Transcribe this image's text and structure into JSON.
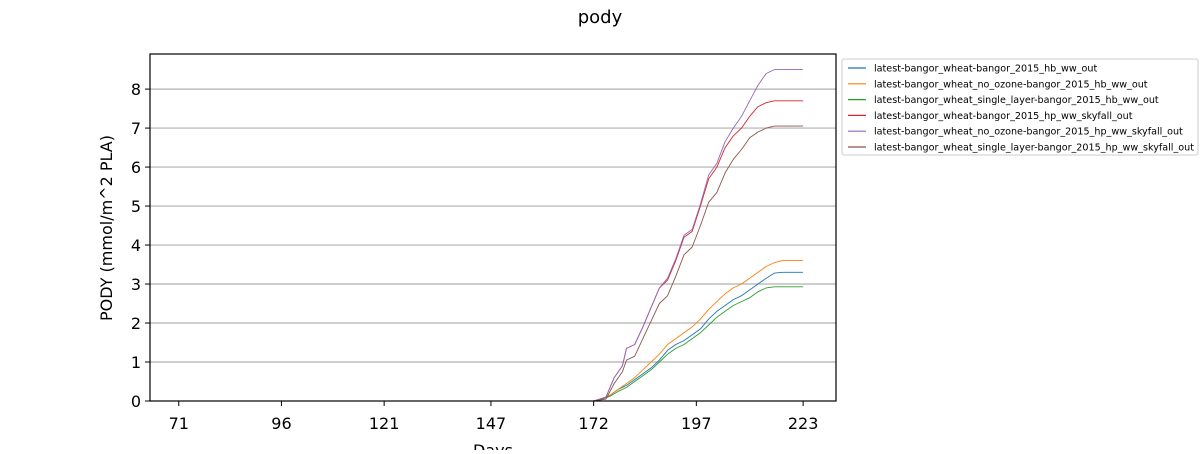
{
  "chart_data": {
    "type": "line",
    "title": "pody",
    "xlabel": "Days",
    "ylabel": "PODY (mmol/m^2 PLA)",
    "xlim": [
      64,
      231
    ],
    "ylim": [
      0,
      8.9
    ],
    "xticks": [
      71,
      96,
      121,
      147,
      172,
      197,
      223
    ],
    "xtick_labels": [
      "71",
      "96",
      "121",
      "147",
      "172",
      "197",
      "223"
    ],
    "yticks": [
      0,
      1,
      2,
      3,
      4,
      5,
      6,
      7,
      8
    ],
    "ytick_labels": [
      "0",
      "1",
      "2",
      "3",
      "4",
      "5",
      "6",
      "7",
      "8"
    ],
    "grid": "horizontal",
    "legend_position": "outside-upper-right",
    "series": [
      {
        "name": "latest-bangor_wheat-bangor_2015_hb_ww_out",
        "color": "#1f77b4",
        "points": [
          [
            71,
            0
          ],
          [
            172,
            0
          ],
          [
            174,
            0.05
          ],
          [
            176,
            0.15
          ],
          [
            178,
            0.3
          ],
          [
            180,
            0.4
          ],
          [
            182,
            0.55
          ],
          [
            184,
            0.7
          ],
          [
            186,
            0.85
          ],
          [
            188,
            1.05
          ],
          [
            190,
            1.3
          ],
          [
            192,
            1.45
          ],
          [
            194,
            1.55
          ],
          [
            196,
            1.7
          ],
          [
            198,
            1.85
          ],
          [
            200,
            2.1
          ],
          [
            202,
            2.3
          ],
          [
            204,
            2.45
          ],
          [
            206,
            2.6
          ],
          [
            208,
            2.7
          ],
          [
            210,
            2.85
          ],
          [
            212,
            3.0
          ],
          [
            214,
            3.15
          ],
          [
            216,
            3.28
          ],
          [
            218,
            3.3
          ],
          [
            223,
            3.3
          ]
        ]
      },
      {
        "name": "latest-bangor_wheat_no_ozone-bangor_2015_hb_ww_out",
        "color": "#ff7f0e",
        "points": [
          [
            71,
            0
          ],
          [
            172,
            0
          ],
          [
            174,
            0.05
          ],
          [
            176,
            0.15
          ],
          [
            178,
            0.3
          ],
          [
            180,
            0.45
          ],
          [
            182,
            0.6
          ],
          [
            184,
            0.8
          ],
          [
            186,
            1.0
          ],
          [
            188,
            1.2
          ],
          [
            190,
            1.45
          ],
          [
            192,
            1.6
          ],
          [
            194,
            1.75
          ],
          [
            196,
            1.9
          ],
          [
            198,
            2.1
          ],
          [
            200,
            2.35
          ],
          [
            202,
            2.55
          ],
          [
            204,
            2.75
          ],
          [
            206,
            2.9
          ],
          [
            208,
            3.0
          ],
          [
            210,
            3.15
          ],
          [
            212,
            3.3
          ],
          [
            214,
            3.45
          ],
          [
            216,
            3.55
          ],
          [
            218,
            3.6
          ],
          [
            223,
            3.6
          ]
        ]
      },
      {
        "name": "latest-bangor_wheat_single_layer-bangor_2015_hb_ww_out",
        "color": "#2ca02c",
        "points": [
          [
            71,
            0
          ],
          [
            172,
            0
          ],
          [
            174,
            0.05
          ],
          [
            176,
            0.12
          ],
          [
            178,
            0.25
          ],
          [
            180,
            0.35
          ],
          [
            182,
            0.5
          ],
          [
            184,
            0.65
          ],
          [
            186,
            0.8
          ],
          [
            188,
            1.0
          ],
          [
            190,
            1.2
          ],
          [
            192,
            1.35
          ],
          [
            194,
            1.45
          ],
          [
            196,
            1.6
          ],
          [
            198,
            1.75
          ],
          [
            200,
            1.95
          ],
          [
            202,
            2.15
          ],
          [
            204,
            2.3
          ],
          [
            206,
            2.45
          ],
          [
            208,
            2.55
          ],
          [
            210,
            2.65
          ],
          [
            212,
            2.8
          ],
          [
            214,
            2.9
          ],
          [
            216,
            2.93
          ],
          [
            223,
            2.93
          ]
        ]
      },
      {
        "name": "latest-bangor_wheat-bangor_2015_hp_ww_skyfall_out",
        "color": "#d62728",
        "points": [
          [
            71,
            0
          ],
          [
            172,
            0
          ],
          [
            175,
            0.1
          ],
          [
            177,
            0.6
          ],
          [
            179,
            0.9
          ],
          [
            180,
            1.35
          ],
          [
            182,
            1.45
          ],
          [
            184,
            1.9
          ],
          [
            186,
            2.4
          ],
          [
            188,
            2.9
          ],
          [
            190,
            3.1
          ],
          [
            192,
            3.6
          ],
          [
            194,
            4.2
          ],
          [
            196,
            4.35
          ],
          [
            198,
            5.0
          ],
          [
            200,
            5.7
          ],
          [
            202,
            6.0
          ],
          [
            204,
            6.5
          ],
          [
            206,
            6.8
          ],
          [
            208,
            7.0
          ],
          [
            210,
            7.3
          ],
          [
            212,
            7.55
          ],
          [
            214,
            7.65
          ],
          [
            216,
            7.7
          ],
          [
            223,
            7.7
          ]
        ]
      },
      {
        "name": "latest-bangor_wheat_no_ozone-bangor_2015_hp_ww_skyfall_out",
        "color": "#9467bd",
        "points": [
          [
            71,
            0
          ],
          [
            172,
            0
          ],
          [
            175,
            0.1
          ],
          [
            177,
            0.6
          ],
          [
            179,
            0.9
          ],
          [
            180,
            1.35
          ],
          [
            182,
            1.45
          ],
          [
            184,
            1.9
          ],
          [
            186,
            2.4
          ],
          [
            188,
            2.9
          ],
          [
            190,
            3.15
          ],
          [
            192,
            3.65
          ],
          [
            194,
            4.25
          ],
          [
            196,
            4.4
          ],
          [
            198,
            5.05
          ],
          [
            200,
            5.8
          ],
          [
            202,
            6.1
          ],
          [
            204,
            6.65
          ],
          [
            206,
            7.0
          ],
          [
            208,
            7.3
          ],
          [
            210,
            7.7
          ],
          [
            212,
            8.1
          ],
          [
            214,
            8.4
          ],
          [
            216,
            8.5
          ],
          [
            223,
            8.5
          ]
        ]
      },
      {
        "name": "latest-bangor_wheat_single_layer-bangor_2015_hp_ww_skyfall_out",
        "color": "#8c564b",
        "points": [
          [
            71,
            0
          ],
          [
            172,
            0
          ],
          [
            175,
            0.05
          ],
          [
            177,
            0.45
          ],
          [
            179,
            0.75
          ],
          [
            180,
            1.05
          ],
          [
            182,
            1.15
          ],
          [
            184,
            1.6
          ],
          [
            186,
            2.05
          ],
          [
            188,
            2.5
          ],
          [
            190,
            2.7
          ],
          [
            192,
            3.2
          ],
          [
            194,
            3.75
          ],
          [
            196,
            3.95
          ],
          [
            198,
            4.5
          ],
          [
            200,
            5.1
          ],
          [
            202,
            5.35
          ],
          [
            204,
            5.85
          ],
          [
            206,
            6.2
          ],
          [
            208,
            6.45
          ],
          [
            210,
            6.75
          ],
          [
            212,
            6.9
          ],
          [
            214,
            7.0
          ],
          [
            216,
            7.05
          ],
          [
            223,
            7.05
          ]
        ]
      }
    ]
  }
}
